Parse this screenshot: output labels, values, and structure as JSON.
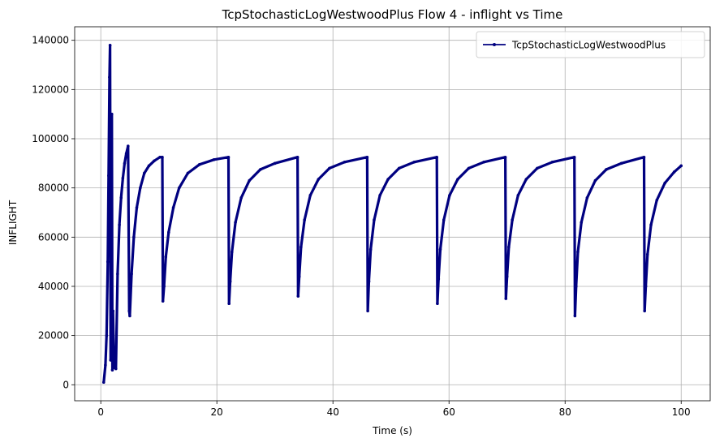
{
  "chart_data": {
    "type": "line",
    "title": "TcpStochasticLogWestwoodPlus Flow 4 - inflight vs Time",
    "xlabel": "Time (s)",
    "ylabel": "INFLIGHT",
    "xlim": [
      -4.5,
      105
    ],
    "ylim": [
      -6500,
      145500
    ],
    "xticks": [
      0,
      20,
      40,
      60,
      80,
      100
    ],
    "yticks": [
      0,
      20000,
      40000,
      60000,
      80000,
      100000,
      120000,
      140000
    ],
    "xtick_labels": [
      "0",
      "20",
      "40",
      "60",
      "80",
      "100"
    ],
    "ytick_labels": [
      "0",
      "20000",
      "40000",
      "60000",
      "80000",
      "100000",
      "120000",
      "140000"
    ],
    "grid": true,
    "legend": {
      "position": "top-right",
      "entries": [
        "TcpStochasticLogWestwoodPlus"
      ]
    },
    "colors": {
      "series": "#000080",
      "grid": "#b0b0b0",
      "axis": "#000000"
    },
    "series": [
      {
        "name": "TcpStochasticLogWestwoodPlus",
        "x": [
          0.5,
          0.8,
          1.0,
          1.2,
          1.35,
          1.5,
          1.6,
          1.7,
          1.8,
          1.9,
          2.0,
          2.1,
          2.3,
          2.6,
          2.9,
          3.2,
          3.5,
          3.8,
          4.1,
          4.4,
          4.7,
          4.9,
          5.0,
          5.3,
          5.7,
          6.2,
          6.8,
          7.5,
          8.3,
          9.2,
          10.2,
          10.6,
          10.7,
          10.9,
          11.2,
          11.7,
          12.5,
          13.5,
          15.0,
          17.0,
          19.5,
          22.0,
          22.1,
          22.3,
          22.6,
          23.2,
          24.2,
          25.6,
          27.5,
          30.0,
          33.9,
          34.0,
          34.2,
          34.5,
          35.1,
          36.1,
          37.5,
          39.4,
          42.0,
          45.9,
          46.0,
          46.2,
          46.5,
          47.1,
          48.1,
          49.5,
          51.4,
          54.0,
          57.9,
          58.0,
          58.2,
          58.5,
          59.1,
          60.1,
          61.5,
          63.4,
          66.0,
          69.7,
          69.8,
          70.0,
          70.3,
          70.9,
          71.9,
          73.3,
          75.2,
          77.8,
          81.6,
          81.7,
          81.9,
          82.2,
          82.8,
          83.8,
          85.2,
          87.1,
          89.7,
          93.6,
          93.7,
          93.9,
          94.2,
          94.8,
          95.8,
          97.2,
          98.8,
          100.0
        ],
        "values": [
          1000,
          8000,
          20000,
          50000,
          85000,
          125000,
          138000,
          10000,
          60000,
          110000,
          6000,
          30000,
          7000,
          6500,
          45000,
          65000,
          76000,
          84000,
          90000,
          94000,
          97000,
          30000,
          28000,
          45000,
          60000,
          72000,
          80000,
          86000,
          89000,
          91000,
          92500,
          92500,
          34000,
          40000,
          52000,
          62000,
          72000,
          80000,
          86000,
          89500,
          91500,
          92500,
          33000,
          42000,
          54000,
          66000,
          76000,
          83000,
          87500,
          90000,
          92500,
          36000,
          44000,
          56000,
          67000,
          77000,
          83500,
          88000,
          90500,
          92500,
          30000,
          42000,
          55000,
          67000,
          77000,
          83500,
          88000,
          90500,
          92500,
          33000,
          43000,
          55000,
          67000,
          77000,
          83500,
          88000,
          90500,
          92500,
          35000,
          44000,
          56000,
          67000,
          77000,
          83500,
          88000,
          90500,
          92500,
          28000,
          40000,
          54000,
          66000,
          76000,
          83000,
          87500,
          90000,
          92500,
          30000,
          40000,
          53000,
          65000,
          75000,
          82000,
          86500,
          89000
        ]
      }
    ]
  }
}
